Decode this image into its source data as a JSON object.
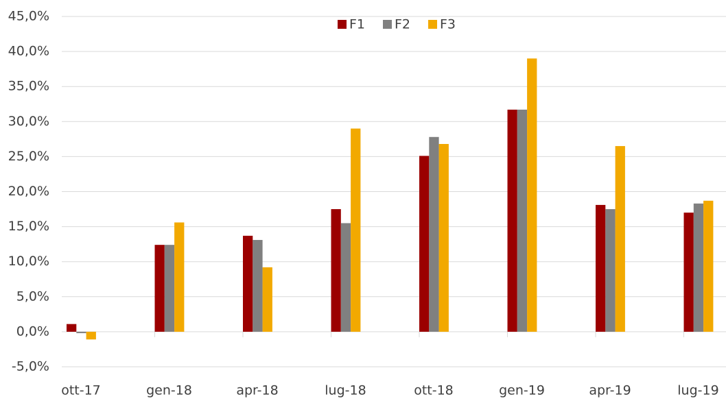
{
  "chart_data": {
    "type": "bar",
    "categories": [
      "ott-17",
      "gen-18",
      "apr-18",
      "lug-18",
      "ott-18",
      "gen-19",
      "apr-19",
      "lug-19"
    ],
    "series": [
      {
        "name": "F1",
        "color": "#9b0000",
        "values": [
          1.1,
          12.4,
          13.7,
          17.5,
          25.1,
          31.7,
          18.1,
          17.0
        ]
      },
      {
        "name": "F2",
        "color": "#808080",
        "values": [
          -0.2,
          12.4,
          13.1,
          15.5,
          27.8,
          31.7,
          17.5,
          18.3
        ]
      },
      {
        "name": "F3",
        "color": "#f2a900",
        "values": [
          -1.1,
          15.6,
          9.2,
          29.0,
          26.8,
          39.0,
          26.5,
          18.7
        ]
      }
    ],
    "ylim": [
      -5,
      45
    ],
    "yticks": [
      {
        "value": -5,
        "label": "-5,0%"
      },
      {
        "value": 0,
        "label": "0,0%"
      },
      {
        "value": 5,
        "label": "5,0%"
      },
      {
        "value": 10,
        "label": "10,0%"
      },
      {
        "value": 15,
        "label": "15,0%"
      },
      {
        "value": 20,
        "label": "20,0%"
      },
      {
        "value": 25,
        "label": "25,0%"
      },
      {
        "value": 30,
        "label": "30,0%"
      },
      {
        "value": 35,
        "label": "35,0%"
      },
      {
        "value": 40,
        "label": "40,0%"
      },
      {
        "value": 45,
        "label": "45,0%"
      }
    ],
    "grid": true,
    "legend": "top"
  }
}
